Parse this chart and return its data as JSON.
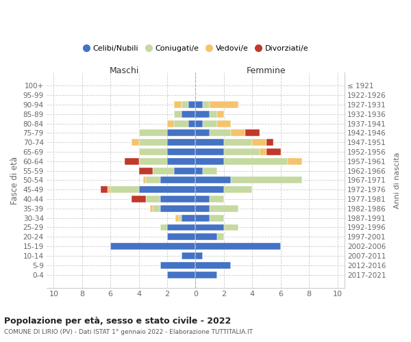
{
  "age_groups": [
    "0-4",
    "5-9",
    "10-14",
    "15-19",
    "20-24",
    "25-29",
    "30-34",
    "35-39",
    "40-44",
    "45-49",
    "50-54",
    "55-59",
    "60-64",
    "65-69",
    "70-74",
    "75-79",
    "80-84",
    "85-89",
    "90-94",
    "95-99",
    "100+"
  ],
  "birth_years": [
    "2017-2021",
    "2012-2016",
    "2007-2011",
    "2002-2006",
    "1997-2001",
    "1992-1996",
    "1987-1991",
    "1982-1986",
    "1977-1981",
    "1972-1976",
    "1967-1971",
    "1962-1966",
    "1957-1961",
    "1952-1956",
    "1947-1951",
    "1942-1946",
    "1937-1941",
    "1932-1936",
    "1927-1931",
    "1922-1926",
    "≤ 1921"
  ],
  "colors": {
    "celibi": "#4472c4",
    "coniugati": "#c5d9a0",
    "vedovi": "#f5c36e",
    "divorziati": "#c0392b"
  },
  "males": {
    "celibi": [
      2.0,
      2.5,
      1.0,
      6.0,
      2.0,
      2.0,
      1.0,
      2.5,
      2.5,
      4.0,
      2.5,
      1.5,
      2.0,
      2.0,
      2.0,
      2.0,
      0.5,
      1.0,
      0.5,
      0.0,
      0.0
    ],
    "coniugati": [
      0.0,
      0.0,
      0.0,
      0.0,
      0.0,
      0.5,
      0.2,
      0.5,
      1.0,
      2.0,
      1.0,
      1.5,
      2.0,
      2.0,
      2.0,
      2.0,
      1.0,
      0.5,
      0.5,
      0.0,
      0.0
    ],
    "vedovi": [
      0.0,
      0.0,
      0.0,
      0.0,
      0.0,
      0.0,
      0.2,
      0.2,
      0.0,
      0.2,
      0.2,
      0.0,
      0.0,
      0.0,
      0.5,
      0.0,
      0.5,
      0.0,
      0.5,
      0.0,
      0.0
    ],
    "divorziati": [
      0.0,
      0.0,
      0.0,
      0.0,
      0.0,
      0.0,
      0.0,
      0.0,
      1.0,
      0.5,
      0.0,
      1.0,
      1.0,
      0.0,
      0.0,
      0.0,
      0.0,
      0.0,
      0.0,
      0.0,
      0.0
    ]
  },
  "females": {
    "celibi": [
      1.5,
      2.5,
      0.5,
      6.0,
      1.5,
      2.0,
      1.0,
      1.0,
      1.0,
      2.0,
      2.5,
      0.5,
      2.0,
      2.0,
      2.0,
      1.0,
      0.5,
      1.0,
      0.5,
      0.0,
      0.0
    ],
    "coniugati": [
      0.0,
      0.0,
      0.0,
      0.0,
      0.5,
      1.0,
      1.0,
      2.0,
      1.0,
      2.0,
      5.0,
      1.0,
      4.5,
      2.5,
      2.0,
      1.5,
      1.0,
      0.5,
      0.5,
      0.0,
      0.0
    ],
    "vedovi": [
      0.0,
      0.0,
      0.0,
      0.0,
      0.0,
      0.0,
      0.0,
      0.0,
      0.0,
      0.0,
      0.0,
      0.0,
      1.0,
      0.5,
      1.0,
      1.0,
      1.0,
      0.5,
      2.0,
      0.0,
      0.0
    ],
    "divorziati": [
      0.0,
      0.0,
      0.0,
      0.0,
      0.0,
      0.0,
      0.0,
      0.0,
      0.0,
      0.0,
      0.0,
      0.0,
      0.0,
      1.0,
      0.5,
      1.0,
      0.0,
      0.0,
      0.0,
      0.0,
      0.0
    ]
  },
  "xlim": [
    -10.5,
    10.5
  ],
  "xticks": [
    -10,
    -8,
    -6,
    -4,
    -2,
    0,
    2,
    4,
    6,
    8,
    10
  ],
  "xticklabels": [
    "10",
    "8",
    "6",
    "4",
    "2",
    "0",
    "2",
    "4",
    "6",
    "8",
    "10"
  ],
  "title_main": "Popolazione per età, sesso e stato civile - 2022",
  "title_sub": "COMUNE DI LIRIO (PV) - Dati ISTAT 1° gennaio 2022 - Elaborazione TUTTITALIA.IT",
  "ylabel": "Fasce di età",
  "ylabel_right": "Anni di nascita",
  "label_maschi": "Maschi",
  "label_femmine": "Femmine",
  "legend_labels": [
    "Celibi/Nubili",
    "Coniugati/e",
    "Vedovi/e",
    "Divorziati/e"
  ],
  "bg_color": "#ffffff",
  "grid_color": "#cccccc"
}
